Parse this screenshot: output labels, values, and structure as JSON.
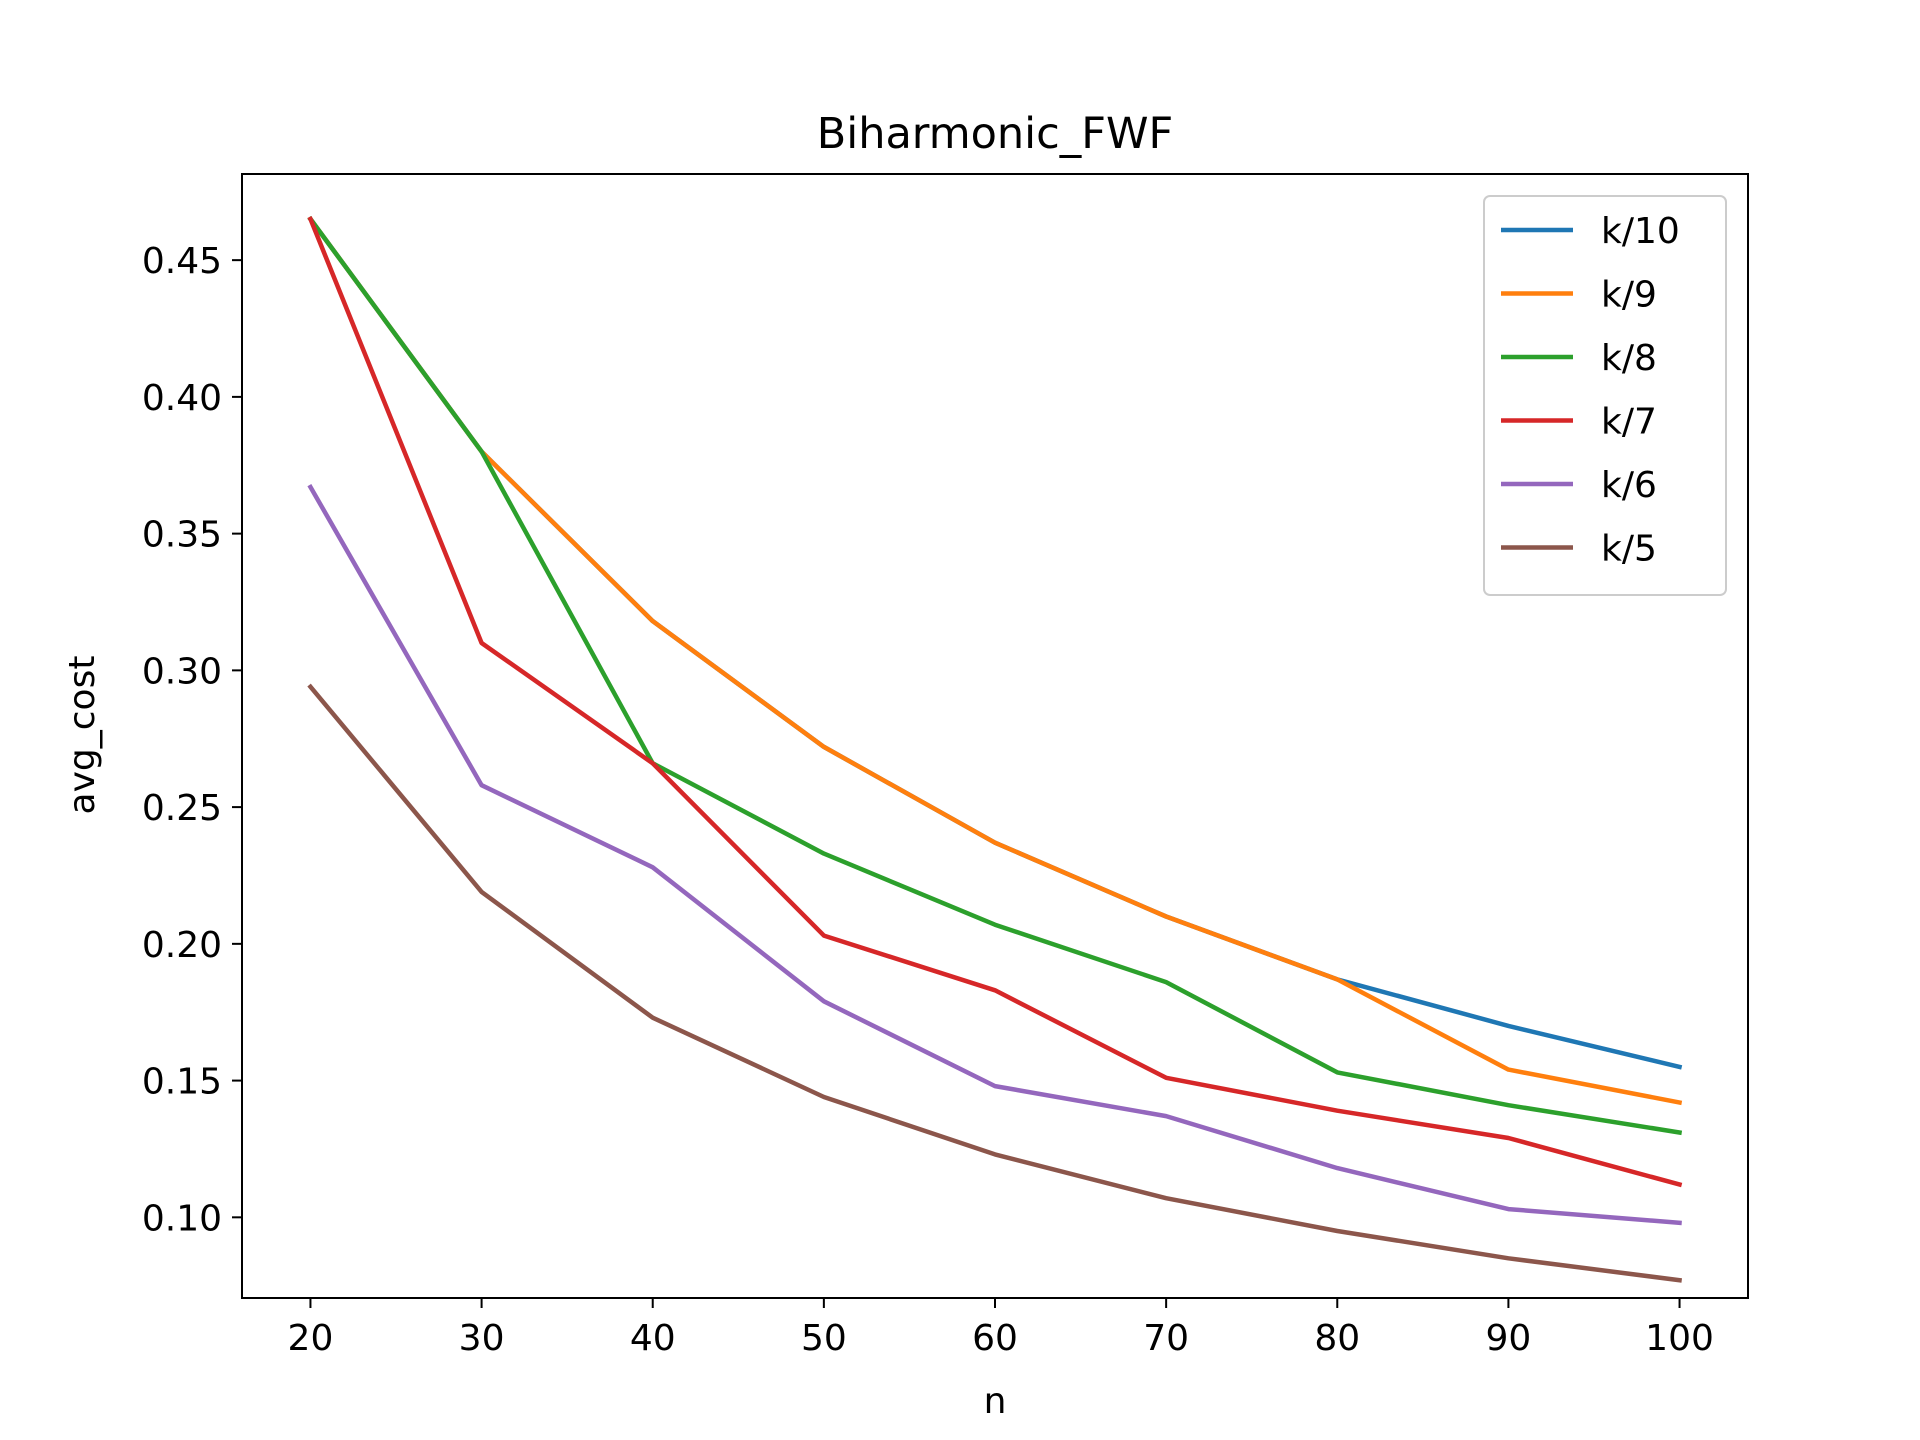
{
  "chart_data": {
    "type": "line",
    "title": "Biharmonic_FWF",
    "xlabel": "n",
    "ylabel": "avg_cost",
    "x": [
      20,
      30,
      40,
      50,
      60,
      70,
      80,
      90,
      100
    ],
    "xlim": [
      16,
      104
    ],
    "ylim": [
      0.0705,
      0.4815
    ],
    "xticks": [
      20,
      30,
      40,
      50,
      60,
      70,
      80,
      90,
      100
    ],
    "yticks": [
      0.1,
      0.15,
      0.2,
      0.25,
      0.3,
      0.35,
      0.4,
      0.45
    ],
    "ytick_labels": [
      "0.10",
      "0.15",
      "0.20",
      "0.25",
      "0.30",
      "0.35",
      "0.40",
      "0.45"
    ],
    "grid": false,
    "legend_position": "top-right",
    "series": [
      {
        "name": "k/10",
        "color": "#1f77b4",
        "values": [
          0.465,
          0.38,
          0.318,
          0.272,
          0.237,
          0.21,
          0.187,
          0.17,
          0.155
        ]
      },
      {
        "name": "k/9",
        "color": "#ff7f0e",
        "values": [
          0.465,
          0.38,
          0.318,
          0.272,
          0.237,
          0.21,
          0.187,
          0.154,
          0.142
        ]
      },
      {
        "name": "k/8",
        "color": "#2ca02c",
        "values": [
          0.465,
          0.38,
          0.266,
          0.233,
          0.207,
          0.186,
          0.153,
          0.141,
          0.131
        ]
      },
      {
        "name": "k/7",
        "color": "#d62728",
        "values": [
          0.465,
          0.31,
          0.266,
          0.203,
          0.183,
          0.151,
          0.139,
          0.129,
          0.112
        ]
      },
      {
        "name": "k/6",
        "color": "#9467bd",
        "values": [
          0.367,
          0.258,
          0.228,
          0.179,
          0.148,
          0.137,
          0.118,
          0.103,
          0.098
        ]
      },
      {
        "name": "k/5",
        "color": "#8c564b",
        "values": [
          0.294,
          0.219,
          0.173,
          0.144,
          0.123,
          0.107,
          0.095,
          0.085,
          0.077
        ]
      }
    ]
  }
}
